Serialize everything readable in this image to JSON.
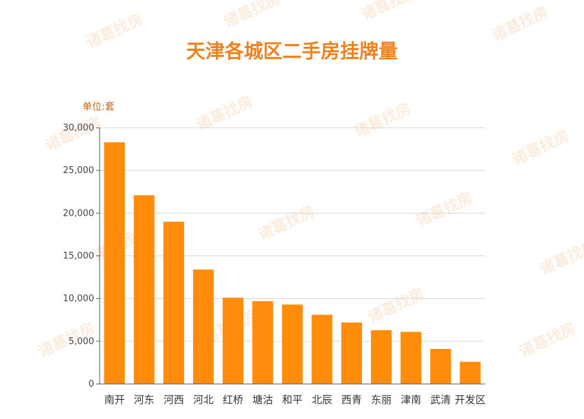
{
  "watermark": {
    "text": "诸葛找房"
  },
  "chart_data": {
    "type": "bar",
    "title": "天津各城区二手房挂牌量",
    "unit_label": "单位:套",
    "categories": [
      "南开",
      "河东",
      "河西",
      "河北",
      "红桥",
      "塘沽",
      "和平",
      "北辰",
      "西青",
      "东丽",
      "津南",
      "武清",
      "开发区"
    ],
    "values": [
      28300,
      22100,
      19000,
      13400,
      10100,
      9700,
      9300,
      8100,
      7200,
      6300,
      6100,
      4100,
      2600
    ],
    "ylim": [
      0,
      30000
    ],
    "yticks": [
      0,
      5000,
      10000,
      15000,
      20000,
      25000,
      30000
    ],
    "ytick_labels": [
      "0",
      "5,000",
      "10,000",
      "15,000",
      "20,000",
      "25,000",
      "30,000"
    ],
    "bar_color": "#ff8c0a",
    "title_color": "#f0821e",
    "grid": true,
    "legend": "none"
  }
}
